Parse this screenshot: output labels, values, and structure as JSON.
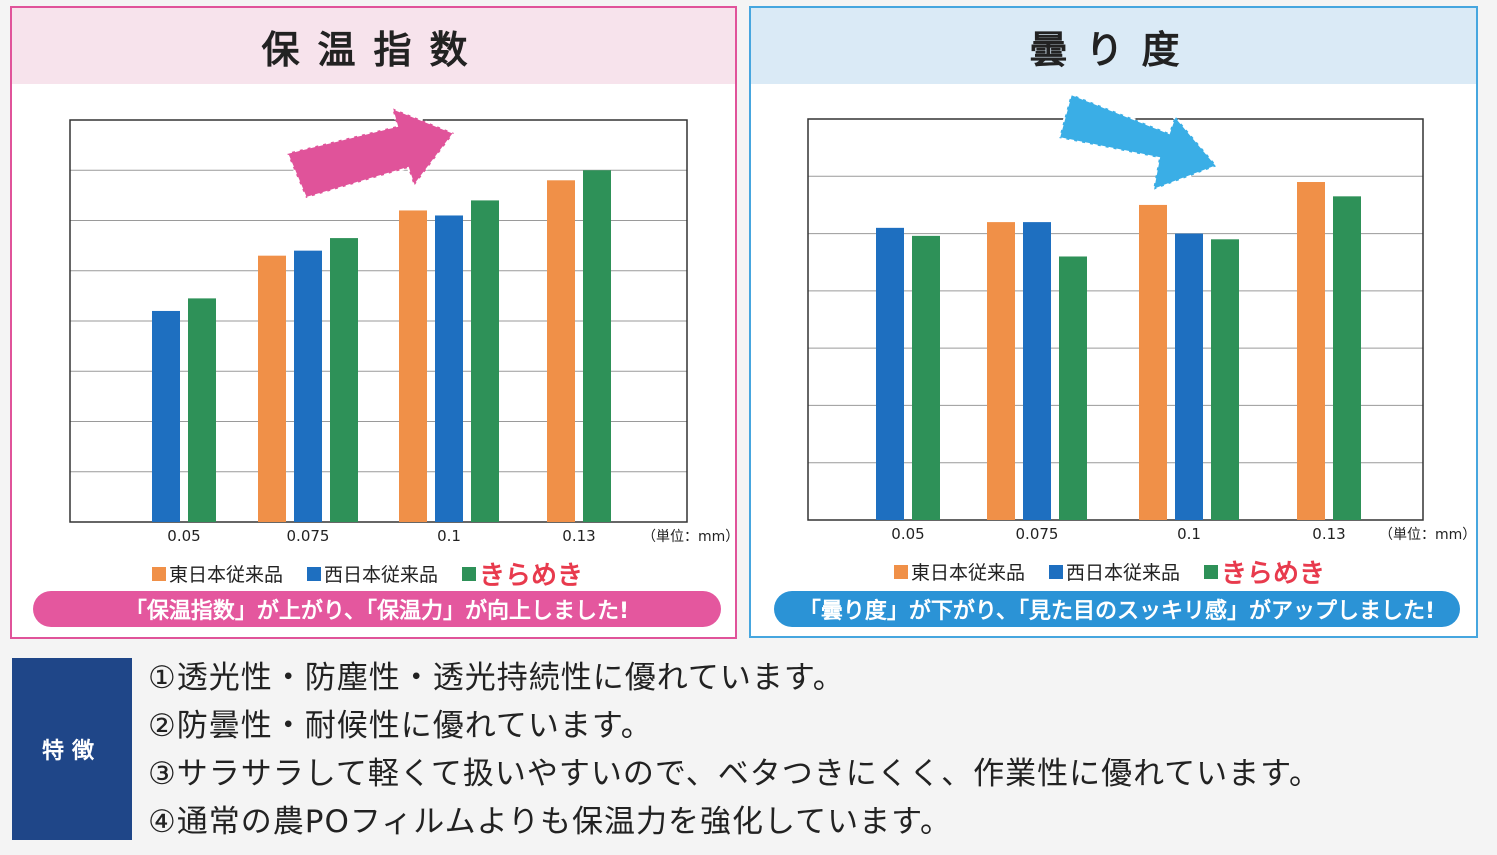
{
  "colors": {
    "east": "#f09048",
    "west": "#1e6fc0",
    "kirameki": "#2e9158",
    "pink": "#e0539a",
    "blue": "#46a6df"
  },
  "legend": {
    "east": "東日本従来品",
    "west": "西日本従来品",
    "kirameki": "きらめき"
  },
  "unit": "（単位：mm）",
  "chart_data": [
    {
      "type": "bar",
      "title": "保温指数",
      "categories": [
        "0.05",
        "0.075",
        "0.1",
        "0.13"
      ],
      "series": [
        {
          "name": "東日本従来品",
          "values": [
            null,
            5.3,
            6.2,
            6.8
          ]
        },
        {
          "name": "西日本従来品",
          "values": [
            4.2,
            5.4,
            6.1,
            null
          ]
        },
        {
          "name": "きらめき",
          "values": [
            4.45,
            5.65,
            6.4,
            7.0
          ]
        }
      ],
      "ylim": [
        0,
        8
      ],
      "grid": true,
      "legend": "bottom",
      "trend_arrow": "up",
      "caption": "「保温指数」が上がり、「保温力」が向上しました!"
    },
    {
      "type": "bar",
      "title": "曇り度",
      "categories": [
        "0.05",
        "0.075",
        "0.1",
        "0.13"
      ],
      "series": [
        {
          "name": "東日本従来品",
          "values": [
            null,
            5.2,
            5.5,
            5.9
          ]
        },
        {
          "name": "西日本従来品",
          "values": [
            5.1,
            5.2,
            5.0,
            null
          ]
        },
        {
          "name": "きらめき",
          "values": [
            4.96,
            4.6,
            4.9,
            5.65
          ]
        }
      ],
      "ylim": [
        0,
        7
      ],
      "grid": true,
      "legend": "bottom",
      "trend_arrow": "down",
      "caption": "「曇り度」が下がり、「見た目のスッキリ感」がアップしました!"
    }
  ],
  "features": {
    "label": "特徴",
    "items": [
      "①透光性・防塵性・透光持続性に優れています。",
      "②防曇性・耐候性に優れています。",
      "③サラサラして軽くて扱いやすいので、ベタつきにくく、作業性に優れています。",
      "④通常の農POフィルムよりも保温力を強化しています。"
    ]
  }
}
